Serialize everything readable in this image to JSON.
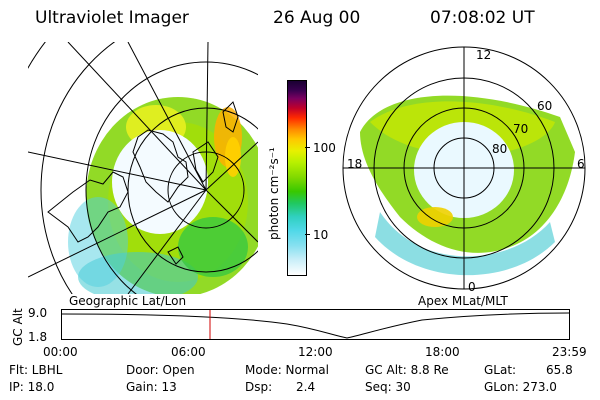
{
  "header": {
    "title": "Ultraviolet Imager",
    "date": "26 Aug 00",
    "time": "07:08:02 UT"
  },
  "left_panel": {
    "label": "Geographic Lat/Lon"
  },
  "right_panel": {
    "label": "Apex MLat/MLT",
    "mlt_labels": {
      "top": "12",
      "bottom": "0",
      "left": "18",
      "right": "6"
    },
    "lat_labels": [
      "60",
      "70",
      "80"
    ]
  },
  "colorbar": {
    "label": "photon cm⁻²s⁻¹",
    "ticks": [
      "100",
      "10"
    ]
  },
  "altitude_plot": {
    "ylabel": "GC Alt",
    "yticks": [
      "9.0",
      "1.8"
    ],
    "xticks": [
      "00:00",
      "06:00",
      "12:00",
      "18:00",
      "23:59"
    ],
    "marker_time": "07:08",
    "marker_color": "#d00000"
  },
  "info": {
    "flt": "Flt: LBHL",
    "ip": "IP: 18.0",
    "door": "Door: Open",
    "gain": "Gain: 13",
    "mode": "Mode: Normal",
    "dsp": "Dsp:",
    "dsp_val": "2.4",
    "gcalt": "GC Alt: 8.8 Re",
    "seq": "Seq: 30",
    "glat": "GLat:",
    "glat_val": "65.8",
    "glon": "GLon: 273.0"
  }
}
